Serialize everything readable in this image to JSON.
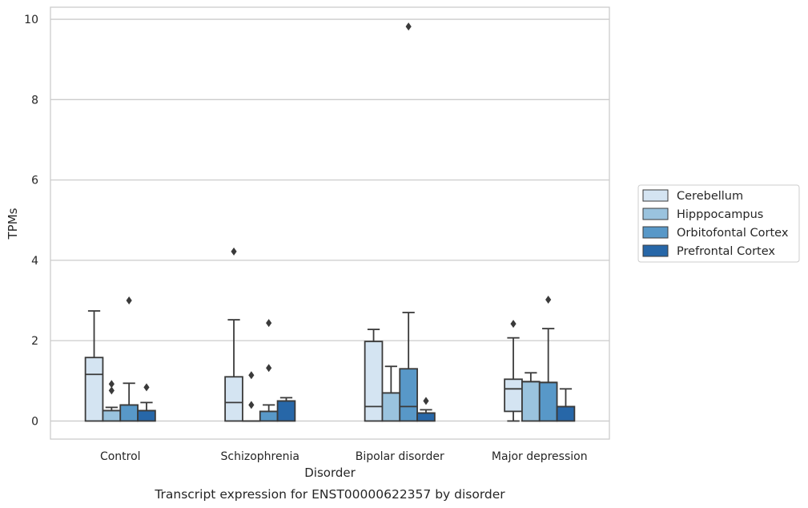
{
  "caption": "Transcript expression for ENST00000622357 by disorder",
  "chart_data": {
    "type": "box",
    "xlabel": "Disorder",
    "ylabel": "TPMs",
    "ylim": [
      -0.45,
      10.3
    ],
    "yticks": [
      0,
      2,
      4,
      6,
      8,
      10
    ],
    "grid": "horizontal",
    "legend_position": "right",
    "categories": [
      "Control",
      "Schizophrenia",
      "Bipolar disorder",
      "Major depression"
    ],
    "series": [
      {
        "name": "Cerebellum",
        "color": "#d4e4f2",
        "boxes": [
          {
            "whisker_low": 0,
            "q1": 0,
            "median": 1.16,
            "q3": 1.58,
            "whisker_high": 2.74,
            "outliers": []
          },
          {
            "whisker_low": 0,
            "q1": 0,
            "median": 0.46,
            "q3": 1.1,
            "whisker_high": 2.52,
            "outliers": [
              4.22
            ]
          },
          {
            "whisker_low": 0,
            "q1": 0,
            "median": 0.36,
            "q3": 1.98,
            "whisker_high": 2.28,
            "outliers": []
          },
          {
            "whisker_low": 0,
            "q1": 0.24,
            "median": 0.8,
            "q3": 1.04,
            "whisker_high": 2.07,
            "outliers": [
              2.42
            ]
          }
        ]
      },
      {
        "name": "Hipppocampus",
        "color": "#9ac3de",
        "boxes": [
          {
            "whisker_low": 0,
            "q1": 0,
            "median": 0.26,
            "q3": 0.26,
            "whisker_high": 0.34,
            "outliers": [
              0.76,
              0.92
            ]
          },
          {
            "whisker_low": 0,
            "q1": 0,
            "median": 0,
            "q3": 0,
            "whisker_high": 0,
            "outliers": [
              0.4,
              1.14
            ]
          },
          {
            "whisker_low": 0,
            "q1": 0,
            "median": 0.7,
            "q3": 0.7,
            "whisker_high": 1.36,
            "outliers": []
          },
          {
            "whisker_low": 0,
            "q1": 0,
            "median": 0.98,
            "q3": 0.98,
            "whisker_high": 1.2,
            "outliers": []
          }
        ]
      },
      {
        "name": "Orbitofontal Cortex",
        "color": "#5898c8",
        "boxes": [
          {
            "whisker_low": 0,
            "q1": 0,
            "median": 0.4,
            "q3": 0.4,
            "whisker_high": 0.94,
            "outliers": [
              3.0
            ]
          },
          {
            "whisker_low": 0,
            "q1": 0,
            "median": 0.24,
            "q3": 0.24,
            "whisker_high": 0.4,
            "outliers": [
              1.32,
              2.44
            ]
          },
          {
            "whisker_low": 0,
            "q1": 0,
            "median": 0.36,
            "q3": 1.3,
            "whisker_high": 2.7,
            "outliers": [
              9.82
            ]
          },
          {
            "whisker_low": 0,
            "q1": 0,
            "median": 0.96,
            "q3": 0.96,
            "whisker_high": 2.3,
            "outliers": [
              3.02
            ]
          }
        ]
      },
      {
        "name": "Prefrontal Cortex",
        "color": "#2767a8",
        "boxes": [
          {
            "whisker_low": 0,
            "q1": 0,
            "median": 0.26,
            "q3": 0.26,
            "whisker_high": 0.46,
            "outliers": [
              0.84
            ]
          },
          {
            "whisker_low": 0,
            "q1": 0,
            "median": 0.5,
            "q3": 0.5,
            "whisker_high": 0.58,
            "outliers": []
          },
          {
            "whisker_low": 0,
            "q1": 0,
            "median": 0.2,
            "q3": 0.2,
            "whisker_high": 0.28,
            "outliers": [
              0.5
            ]
          },
          {
            "whisker_low": 0,
            "q1": 0,
            "median": 0.36,
            "q3": 0.36,
            "whisker_high": 0.8,
            "outliers": []
          }
        ]
      }
    ]
  }
}
